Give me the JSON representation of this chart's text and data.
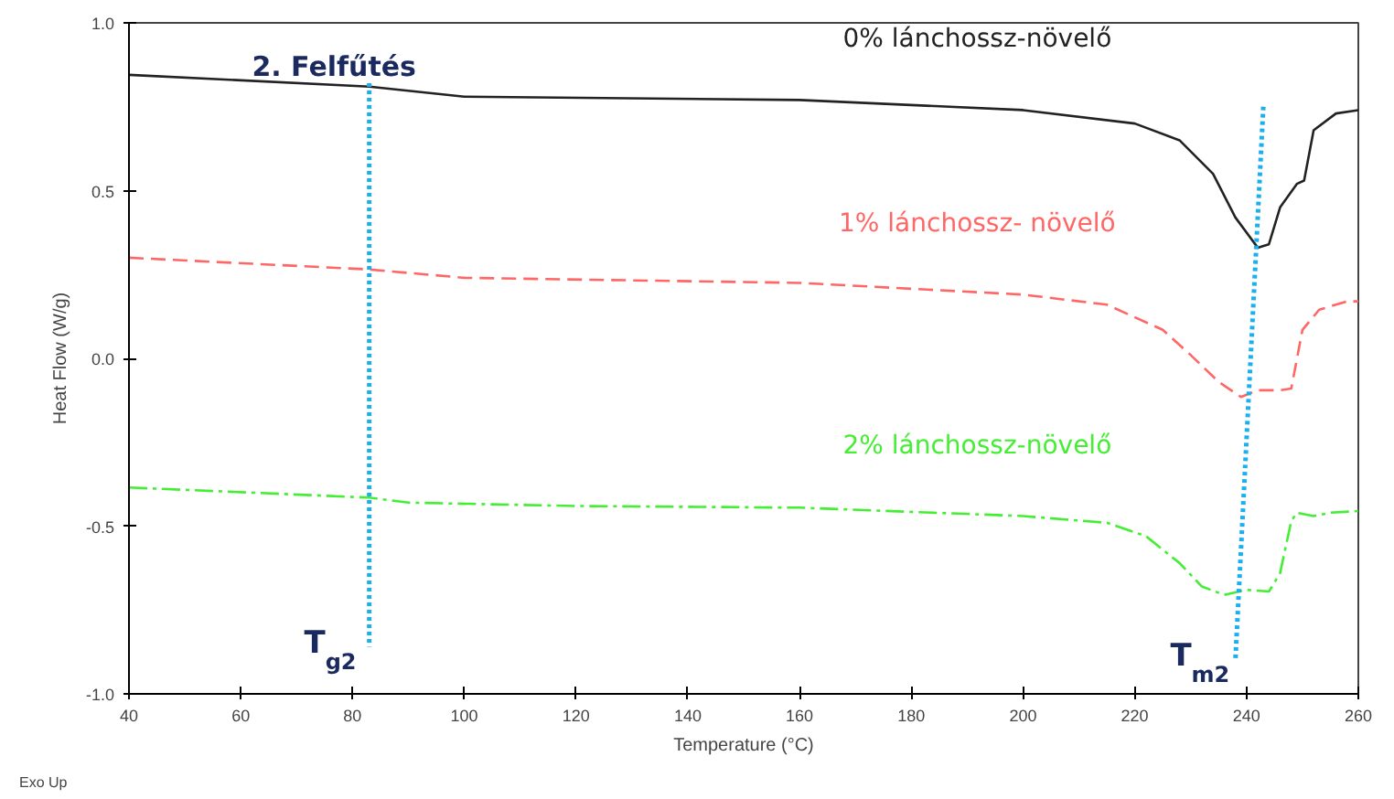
{
  "chart_data": {
    "type": "line",
    "xlabel": "Temperature (°C)",
    "ylabel": "Heat Flow (W/g)",
    "xlim": [
      40,
      260
    ],
    "ylim": [
      -1.0,
      1.0
    ],
    "xticks": [
      40,
      60,
      80,
      100,
      120,
      140,
      160,
      180,
      200,
      220,
      240,
      260
    ],
    "yticks": [
      {
        "value": 1.0,
        "label": "1.0"
      },
      {
        "value": 0.5,
        "label": "0.5"
      },
      {
        "value": 0.0,
        "label": "0.0"
      },
      {
        "value": -0.5,
        "label": "-0.5"
      },
      {
        "value": -1.0,
        "label": "-1.0"
      }
    ],
    "grid": false,
    "marker": "none",
    "series": [
      {
        "name": "0% lánchossz-növelő",
        "color": "#222222",
        "line_style": "solid",
        "x": [
          40,
          83,
          100,
          160,
          200,
          220,
          228,
          234,
          238,
          242,
          244,
          246,
          249,
          250.3,
          252,
          256,
          260
        ],
        "values": [
          0.845,
          0.81,
          0.78,
          0.77,
          0.74,
          0.7,
          0.65,
          0.55,
          0.42,
          0.33,
          0.34,
          0.45,
          0.52,
          0.53,
          0.68,
          0.73,
          0.74
        ]
      },
      {
        "name": "1% lánchossz- növelő",
        "color": "#ff6666",
        "line_style": "dashed",
        "x": [
          40,
          83,
          100,
          160,
          200,
          215,
          225,
          230,
          235,
          239,
          242,
          246,
          248,
          250,
          253,
          258,
          260
        ],
        "values": [
          0.3,
          0.265,
          0.24,
          0.225,
          0.19,
          0.16,
          0.085,
          0.01,
          -0.07,
          -0.115,
          -0.095,
          -0.095,
          -0.09,
          0.085,
          0.145,
          0.17,
          0.17
        ]
      },
      {
        "name": "2% lánchossz-növelő",
        "color": "#44ee33",
        "line_style": "dashdot",
        "x": [
          40,
          83,
          90,
          120,
          160,
          200,
          215,
          222,
          228,
          232,
          236,
          240,
          244,
          246,
          248,
          249,
          252,
          255,
          260
        ],
        "values": [
          -0.385,
          -0.415,
          -0.43,
          -0.44,
          -0.445,
          -0.47,
          -0.49,
          -0.53,
          -0.61,
          -0.68,
          -0.705,
          -0.69,
          -0.695,
          -0.64,
          -0.485,
          -0.46,
          -0.47,
          -0.46,
          -0.455
        ]
      },
      {
        "color": "#1ab0ee",
        "line_style": "dotted",
        "x": [
          83,
          83
        ],
        "values": [
          0.82,
          -0.86
        ]
      },
      {
        "color": "#1ab0ee",
        "line_style": "dotted",
        "x": [
          243,
          238
        ],
        "values": [
          0.75,
          -0.9
        ]
      }
    ],
    "annotations": [
      "2. Felfűtés",
      "Exo Up",
      {
        "text": "T$_{g2}$",
        "x": 83,
        "y": -0.86
      },
      {
        "text": "T$_{m2}$",
        "x": 238,
        "y": -0.9
      }
    ]
  }
}
